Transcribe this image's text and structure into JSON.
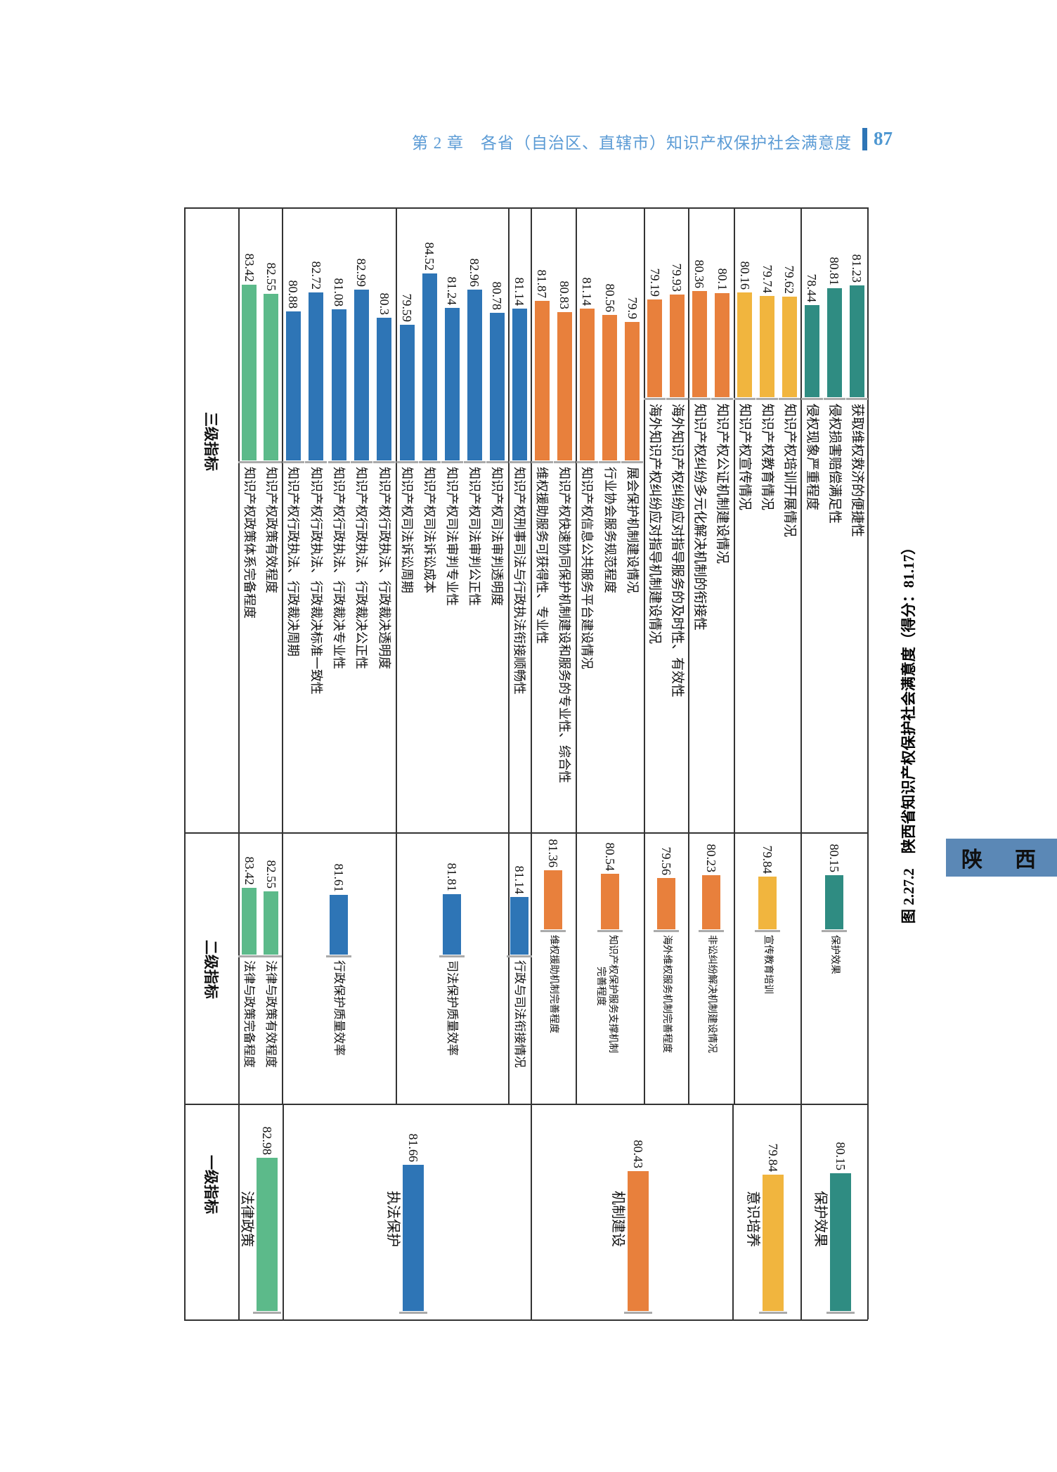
{
  "header": {
    "chapter": "第 2 章",
    "title": "各省（自治区、直辖市）知识产权保护社会满意度",
    "page_number": "87"
  },
  "figure": {
    "caption": "图 2.27.2　陕西省知识产权保护社会满意度（得分：81.17）",
    "province_tab": "陕　西",
    "band_headers": [
      "三级指标",
      "二级指标",
      "一级指标"
    ],
    "overall_score": "81.17"
  },
  "colors": {
    "green": "#5CBA8A",
    "blue": "#2E75B6",
    "orange": "#E8803C",
    "yellow": "#F1B53E",
    "teal": "#2F8C82",
    "tab_bg": "#5B88B6",
    "header_text": "#5B9BD5",
    "accent_bar": "#2E75B6",
    "grid": "#333333",
    "tick": "#AAAAAA"
  },
  "chart_data": [
    {
      "type": "bar",
      "title": "三级指标",
      "groups": [
        {
          "color": "green",
          "items": [
            {
              "label": "知识产权政策体系完备程度",
              "value": 83.42
            },
            {
              "label": "知识产权政策有效程度",
              "value": 82.55
            }
          ]
        },
        {
          "color": "blue",
          "items": [
            {
              "label": "知识产权行政执法、行政裁决周期",
              "value": 80.88
            },
            {
              "label": "知识产权行政执法、行政裁决标准一致性",
              "value": 82.72
            },
            {
              "label": "知识产权行政执法、行政裁决专业性",
              "value": 81.08
            },
            {
              "label": "知识产权行政执法、行政裁决公正性",
              "value": 82.99
            },
            {
              "label": "知识产权行政执法、行政裁决透明度",
              "value": 80.3
            }
          ]
        },
        {
          "color": "blue",
          "items": [
            {
              "label": "知识产权司法诉讼周期",
              "value": 79.59
            },
            {
              "label": "知识产权司法诉讼成本",
              "value": 84.52
            },
            {
              "label": "知识产权司法审判专业性",
              "value": 81.24
            },
            {
              "label": "知识产权司法审判公正性",
              "value": 82.96
            },
            {
              "label": "知识产权司法审判透明度",
              "value": 80.78
            }
          ]
        },
        {
          "color": "blue",
          "items": [
            {
              "label": "知识产权刑事司法与行政执法衔接顺畅性",
              "value": 81.14
            }
          ]
        },
        {
          "color": "orange",
          "items": [
            {
              "label": "维权援助服务可获得性、专业性",
              "value": 81.87
            },
            {
              "label": "知识产权快速协同保护机制建设和服务的专业性、综合性",
              "value": 80.83
            }
          ]
        },
        {
          "color": "orange",
          "items": [
            {
              "label": "知识产权信息公共服务平台建设情况",
              "value": 81.14
            },
            {
              "label": "行业协会服务规范程度",
              "value": 80.56
            },
            {
              "label": "展会保护机制建设情况",
              "value": 79.9
            }
          ]
        },
        {
          "color": "orange",
          "items": [
            {
              "label": "海外知识产权纠纷应对指导机制建设情况",
              "value": 79.19
            },
            {
              "label": "海外知识产权纠纷应对指导服务的及时性、有效性",
              "value": 79.93
            }
          ]
        },
        {
          "color": "orange",
          "items": [
            {
              "label": "知识产权纠纷多元化解决机制的衔接性",
              "value": 80.36
            },
            {
              "label": "知识产权公证机制建设情况",
              "value": 80.1
            }
          ]
        },
        {
          "color": "yellow",
          "items": [
            {
              "label": "知识产权宣传情况",
              "value": 80.16
            },
            {
              "label": "知识产权教育情况",
              "value": 79.74
            },
            {
              "label": "知识产权培训开展情况",
              "value": 79.62
            }
          ]
        },
        {
          "color": "teal",
          "items": [
            {
              "label": "侵权现象严重程度",
              "value": 78.44
            },
            {
              "label": "侵权损害赔偿满足性",
              "value": 80.81
            },
            {
              "label": "获取维权救济的便捷性",
              "value": 81.23
            }
          ]
        }
      ]
    },
    {
      "type": "bar",
      "title": "二级指标",
      "groups": [
        {
          "color": "green",
          "items": [
            {
              "label": "法律与政策完备程度",
              "value": 83.42
            },
            {
              "label": "法律与政策有效程度",
              "value": 82.55
            }
          ]
        },
        {
          "color": "blue",
          "items": [
            {
              "label": "行政保护质量效率",
              "value": 81.61
            }
          ]
        },
        {
          "color": "blue",
          "items": [
            {
              "label": "司法保护质量效率",
              "value": 81.81
            }
          ]
        },
        {
          "color": "blue",
          "items": [
            {
              "label": "行政与司法衔接情况",
              "value": 81.14
            }
          ]
        },
        {
          "color": "orange",
          "items": [
            {
              "label": "维权援助机制完善程度",
              "value": 81.36
            }
          ]
        },
        {
          "color": "orange",
          "items": [
            {
              "label": "知识产权保护服务支撑机制完善程度",
              "label_lines": [
                "知识产权保护服务支撑机制",
                "完善程度"
              ],
              "value": 80.54
            }
          ]
        },
        {
          "color": "orange",
          "items": [
            {
              "label": "海外维权服务机制完善程度",
              "value": 79.56
            }
          ]
        },
        {
          "color": "orange",
          "items": [
            {
              "label": "非讼纠纷解决机制建设情况",
              "value": 80.23
            }
          ]
        },
        {
          "color": "yellow",
          "items": [
            {
              "label": "宣传教育培训",
              "value": 79.84
            }
          ]
        },
        {
          "color": "teal",
          "items": [
            {
              "label": "保护效果",
              "value": 80.15
            }
          ]
        }
      ]
    },
    {
      "type": "bar",
      "title": "一级指标",
      "groups": [
        {
          "color": "green",
          "items": [
            {
              "label": "法律政策",
              "value": 82.98
            }
          ]
        },
        {
          "color": "blue",
          "items": [
            {
              "label": "执法保护",
              "value": 81.66
            }
          ]
        },
        {
          "color": "orange",
          "items": [
            {
              "label": "机制建设",
              "value": 80.43
            }
          ]
        },
        {
          "color": "yellow",
          "items": [
            {
              "label": "意识培养",
              "value": 79.84
            }
          ]
        },
        {
          "color": "teal",
          "items": [
            {
              "label": "保护效果",
              "value": 80.15
            }
          ]
        }
      ]
    }
  ]
}
